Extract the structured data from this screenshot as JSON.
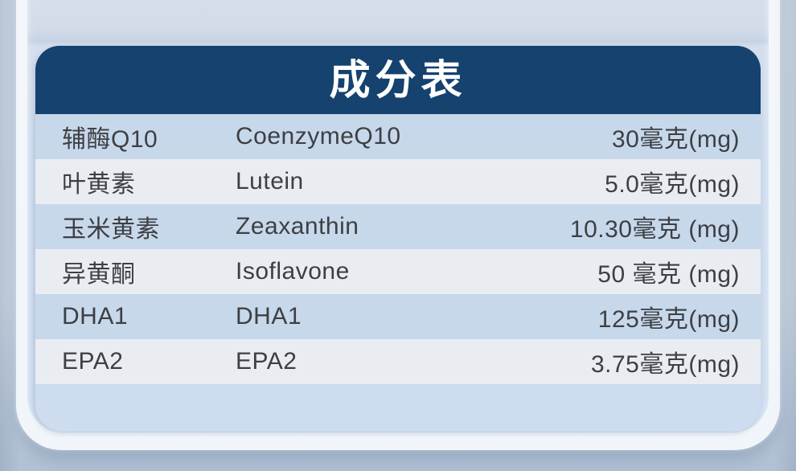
{
  "colors": {
    "header_bg": "#15426f",
    "title_color": "#ffffff",
    "row_odd_bg": "#c7d8eb",
    "row_even_bg": "#e9edf2",
    "footer_bg": "#cddcee",
    "panel_bg_top": "#dce4f0",
    "panel_bg_bottom": "#cddcee",
    "text_color": "#3d3f43"
  },
  "table": {
    "title": "成分表",
    "columns": [
      "ingredient_name_cn",
      "ingredient_name_en",
      "amount"
    ],
    "rows": [
      {
        "cn": "辅酶Q10",
        "en": "CoenzymeQ10",
        "value": "30毫克(mg)"
      },
      {
        "cn": "叶黄素",
        "en": "Lutein",
        "value": "5.0毫克(mg)"
      },
      {
        "cn": "玉米黄素",
        "en": "Zeaxanthin",
        "value": "10.30毫克 (mg)"
      },
      {
        "cn": "异黄酮",
        "en": "Isoflavone",
        "value": "50 毫克 (mg)"
      },
      {
        "cn": "DHA1",
        "en": "DHA1",
        "value": "125毫克(mg)"
      },
      {
        "cn": "EPA2",
        "en": "EPA2",
        "value": "3.75毫克(mg)"
      }
    ]
  }
}
